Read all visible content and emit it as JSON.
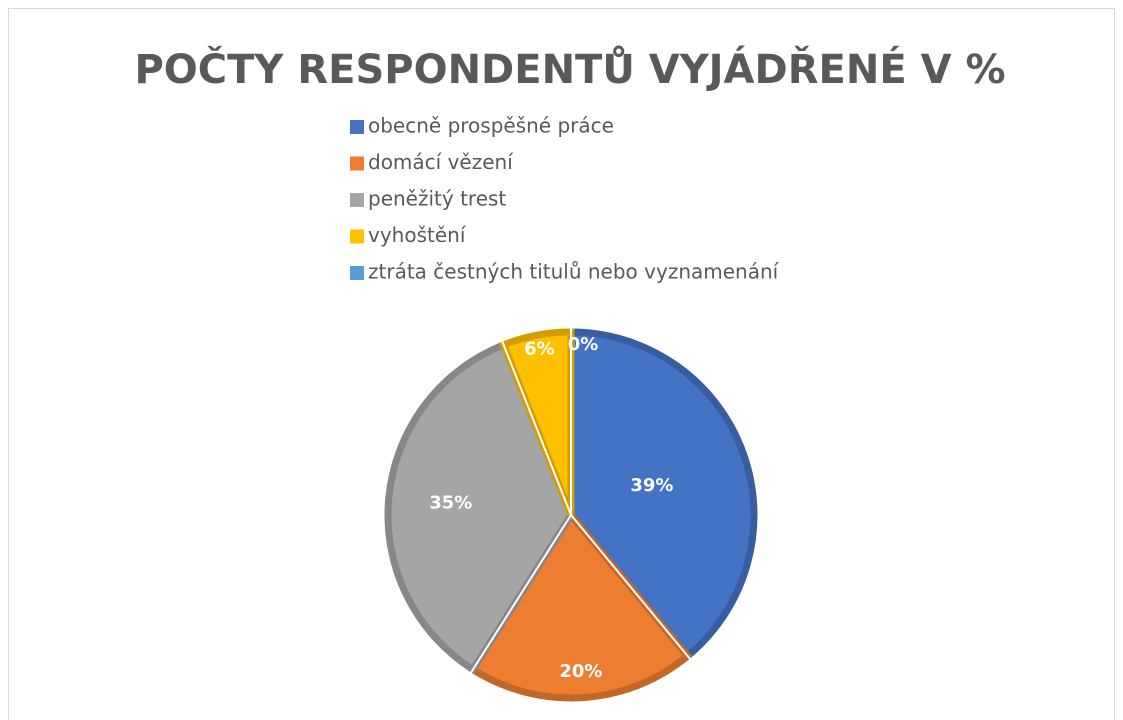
{
  "chart_data": {
    "type": "pie",
    "title": "POČTY RESPONDENTŮ VYJÁDŘENÉ V %",
    "categories": [
      "obecně prospěšné práce",
      "domácí vězení",
      "peněžitý trest",
      "vyhoštění",
      "ztráta čestných titulů nebo vyznamenání"
    ],
    "values": [
      39,
      20,
      35,
      6,
      0
    ],
    "value_labels": [
      "39%",
      "20%",
      "35%",
      "6%",
      "0%"
    ],
    "colors": [
      "#4472c4",
      "#ed7d31",
      "#a5a5a5",
      "#ffc000",
      "#5b9bd5"
    ],
    "legend": "top"
  }
}
